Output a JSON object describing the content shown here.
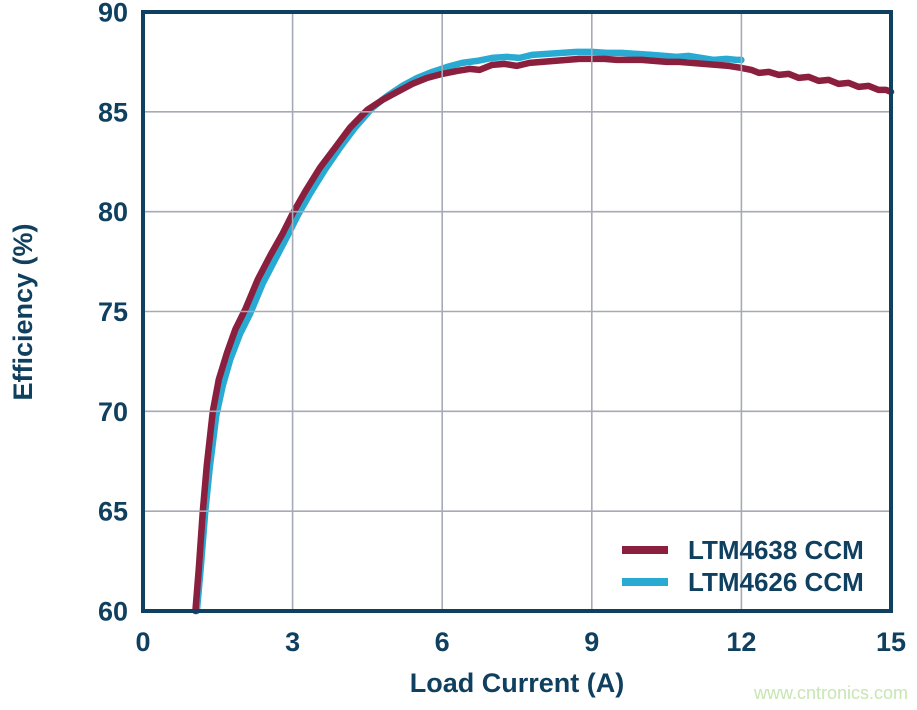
{
  "colors": {
    "axis": "#10405f",
    "text": "#10405f",
    "grid": "#a6aab4",
    "background": "#ffffff",
    "watermark": "#c6e6b2",
    "series_red": "#8b1f3e",
    "series_blue": "#29aad2"
  },
  "watermark": "www.cntronics.com",
  "chart_data": {
    "type": "line",
    "title": "",
    "xlabel": "Load Current (A)",
    "ylabel": "Efficiency (%)",
    "xlim": [
      0,
      15
    ],
    "ylim": [
      60,
      90
    ],
    "x_ticks": [
      0,
      3,
      6,
      9,
      12,
      15
    ],
    "y_ticks": [
      60,
      65,
      70,
      75,
      80,
      85,
      90
    ],
    "grid": true,
    "grid_on_top": true,
    "legend_position": "bottom-right-inside",
    "series": [
      {
        "name": "LTM4638 CCM",
        "color": "#8b1f3e",
        "points": [
          [
            1.05,
            60
          ],
          [
            1.12,
            62.2
          ],
          [
            1.2,
            65
          ],
          [
            1.28,
            67.3
          ],
          [
            1.4,
            70
          ],
          [
            1.52,
            71.6
          ],
          [
            1.68,
            72.9
          ],
          [
            1.85,
            74.1
          ],
          [
            2.05,
            75.1
          ],
          [
            2.3,
            76.6
          ],
          [
            2.55,
            77.8
          ],
          [
            2.8,
            78.9
          ],
          [
            3.0,
            79.9
          ],
          [
            3.25,
            81.0
          ],
          [
            3.55,
            82.2
          ],
          [
            3.85,
            83.2
          ],
          [
            4.15,
            84.2
          ],
          [
            4.5,
            85.1
          ],
          [
            4.8,
            85.6
          ],
          [
            5.1,
            86.0
          ],
          [
            5.4,
            86.4
          ],
          [
            5.7,
            86.7
          ],
          [
            6.0,
            86.9
          ],
          [
            6.3,
            87.05
          ],
          [
            6.55,
            87.15
          ],
          [
            6.75,
            87.1
          ],
          [
            7.0,
            87.35
          ],
          [
            7.25,
            87.4
          ],
          [
            7.5,
            87.3
          ],
          [
            7.75,
            87.45
          ],
          [
            8.0,
            87.5
          ],
          [
            8.25,
            87.55
          ],
          [
            8.5,
            87.6
          ],
          [
            8.75,
            87.65
          ],
          [
            9.0,
            87.65
          ],
          [
            9.25,
            87.65
          ],
          [
            9.5,
            87.6
          ],
          [
            9.75,
            87.6
          ],
          [
            10.0,
            87.6
          ],
          [
            10.25,
            87.55
          ],
          [
            10.5,
            87.5
          ],
          [
            10.75,
            87.5
          ],
          [
            11.0,
            87.45
          ],
          [
            11.25,
            87.4
          ],
          [
            11.5,
            87.35
          ],
          [
            11.75,
            87.3
          ],
          [
            12.0,
            87.2
          ],
          [
            12.2,
            87.1
          ],
          [
            12.35,
            86.95
          ],
          [
            12.55,
            87.0
          ],
          [
            12.75,
            86.85
          ],
          [
            12.95,
            86.9
          ],
          [
            13.15,
            86.7
          ],
          [
            13.35,
            86.75
          ],
          [
            13.55,
            86.55
          ],
          [
            13.75,
            86.6
          ],
          [
            13.95,
            86.4
          ],
          [
            14.15,
            86.45
          ],
          [
            14.35,
            86.25
          ],
          [
            14.55,
            86.3
          ],
          [
            14.75,
            86.1
          ],
          [
            14.9,
            86.1
          ],
          [
            15.0,
            86.0
          ]
        ]
      },
      {
        "name": "LTM4626 CCM",
        "color": "#29aad2",
        "points": [
          [
            1.08,
            60
          ],
          [
            1.16,
            62.2
          ],
          [
            1.25,
            65
          ],
          [
            1.34,
            67.2
          ],
          [
            1.47,
            69.8
          ],
          [
            1.6,
            71.3
          ],
          [
            1.75,
            72.6
          ],
          [
            1.95,
            73.9
          ],
          [
            2.15,
            74.9
          ],
          [
            2.4,
            76.4
          ],
          [
            2.65,
            77.6
          ],
          [
            2.9,
            78.8
          ],
          [
            3.1,
            79.8
          ],
          [
            3.35,
            80.9
          ],
          [
            3.65,
            82.1
          ],
          [
            3.95,
            83.2
          ],
          [
            4.25,
            84.2
          ],
          [
            4.6,
            85.2
          ],
          [
            4.9,
            85.8
          ],
          [
            5.2,
            86.3
          ],
          [
            5.5,
            86.7
          ],
          [
            5.8,
            87.0
          ],
          [
            6.1,
            87.25
          ],
          [
            6.4,
            87.45
          ],
          [
            6.7,
            87.55
          ],
          [
            7.0,
            87.7
          ],
          [
            7.3,
            87.75
          ],
          [
            7.55,
            87.7
          ],
          [
            7.8,
            87.85
          ],
          [
            8.1,
            87.9
          ],
          [
            8.4,
            87.95
          ],
          [
            8.7,
            88.0
          ],
          [
            9.0,
            88.0
          ],
          [
            9.3,
            87.95
          ],
          [
            9.6,
            87.95
          ],
          [
            9.9,
            87.9
          ],
          [
            10.2,
            87.85
          ],
          [
            10.45,
            87.8
          ],
          [
            10.7,
            87.75
          ],
          [
            10.95,
            87.8
          ],
          [
            11.2,
            87.7
          ],
          [
            11.45,
            87.6
          ],
          [
            11.7,
            87.65
          ],
          [
            11.9,
            87.6
          ],
          [
            12.0,
            87.6
          ]
        ]
      }
    ]
  }
}
